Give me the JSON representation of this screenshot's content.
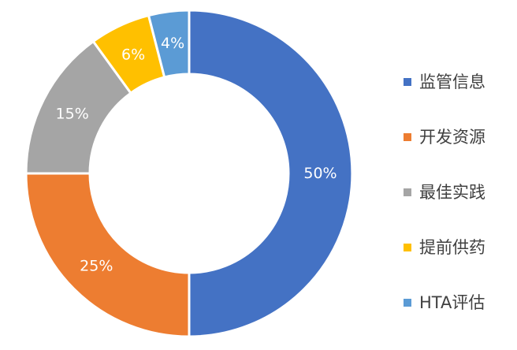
{
  "chart_data": {
    "type": "pie",
    "donut": true,
    "title": "",
    "categories": [
      "监管信息",
      "开发资源",
      "最佳实践",
      "提前供药",
      "HTA评估"
    ],
    "values": [
      50,
      25,
      15,
      6,
      4
    ],
    "labels": [
      "50%",
      "25%",
      "15%",
      "6%",
      "4%"
    ],
    "colors": [
      "#4472C4",
      "#ED7D31",
      "#A5A5A5",
      "#FFC000",
      "#5B9BD5"
    ],
    "legend_position": "right"
  }
}
